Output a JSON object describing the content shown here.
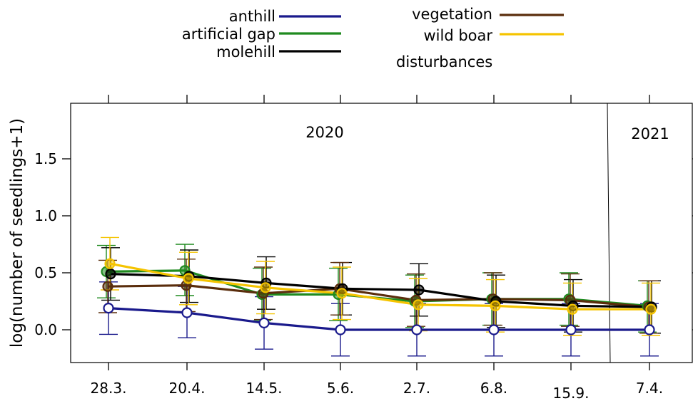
{
  "chart_data": {
    "type": "line",
    "ylabel": "log(number of seedlings+1)",
    "categories": [
      "28.3.",
      "20.4.",
      "14.5.",
      "5.6.",
      "2.7.",
      "6.8.",
      "15.9.",
      "7.4."
    ],
    "y_ticks": [
      "0.0",
      "0.5",
      "1.0",
      "1.5"
    ],
    "ylim": [
      -0.28,
      1.98
    ],
    "year_labels": [
      "2020",
      "2021"
    ],
    "legend_placement": "top",
    "legend_extra_text": "disturbances",
    "series": [
      {
        "name": "anthill",
        "color": "#1a1a8c",
        "values": [
          0.19,
          0.15,
          0.06,
          0.0,
          0.0,
          0.0,
          0.0,
          0.0
        ],
        "err_low": [
          -0.04,
          -0.07,
          -0.17,
          -0.23,
          -0.23,
          -0.23,
          -0.23,
          -0.23
        ],
        "err_high": [
          0.42,
          0.38,
          0.29,
          0.23,
          0.23,
          0.23,
          0.23,
          0.23
        ]
      },
      {
        "name": "artificial gap",
        "color": "#1f8a1f",
        "values": [
          0.51,
          0.52,
          0.31,
          0.31,
          0.25,
          0.27,
          0.27,
          0.21
        ],
        "err_low": [
          0.28,
          0.3,
          0.08,
          0.08,
          0.02,
          0.04,
          0.04,
          -0.02
        ],
        "err_high": [
          0.74,
          0.75,
          0.54,
          0.54,
          0.48,
          0.5,
          0.5,
          0.43
        ]
      },
      {
        "name": "molehill",
        "color": "#000000",
        "values": [
          0.49,
          0.47,
          0.41,
          0.36,
          0.35,
          0.25,
          0.21,
          0.2
        ],
        "err_low": [
          0.26,
          0.24,
          0.18,
          0.13,
          0.12,
          0.02,
          -0.02,
          -0.03
        ],
        "err_high": [
          0.72,
          0.7,
          0.64,
          0.59,
          0.58,
          0.48,
          0.44,
          0.43
        ]
      },
      {
        "name": "vegetation",
        "color": "#5a2d0c",
        "values": [
          0.38,
          0.39,
          0.32,
          0.36,
          0.26,
          0.27,
          0.26,
          0.2
        ],
        "err_low": [
          0.15,
          0.16,
          0.09,
          0.13,
          0.03,
          0.04,
          0.03,
          -0.03
        ],
        "err_high": [
          0.61,
          0.62,
          0.55,
          0.59,
          0.49,
          0.5,
          0.49,
          0.43
        ]
      },
      {
        "name": "wild boar",
        "color": "#f5c400",
        "values": [
          0.58,
          0.45,
          0.37,
          0.32,
          0.22,
          0.21,
          0.18,
          0.18
        ],
        "err_low": [
          0.35,
          0.22,
          0.14,
          0.09,
          -0.01,
          -0.02,
          -0.05,
          -0.05
        ],
        "err_high": [
          0.81,
          0.68,
          0.6,
          0.55,
          0.45,
          0.44,
          0.41,
          0.41
        ]
      }
    ]
  }
}
